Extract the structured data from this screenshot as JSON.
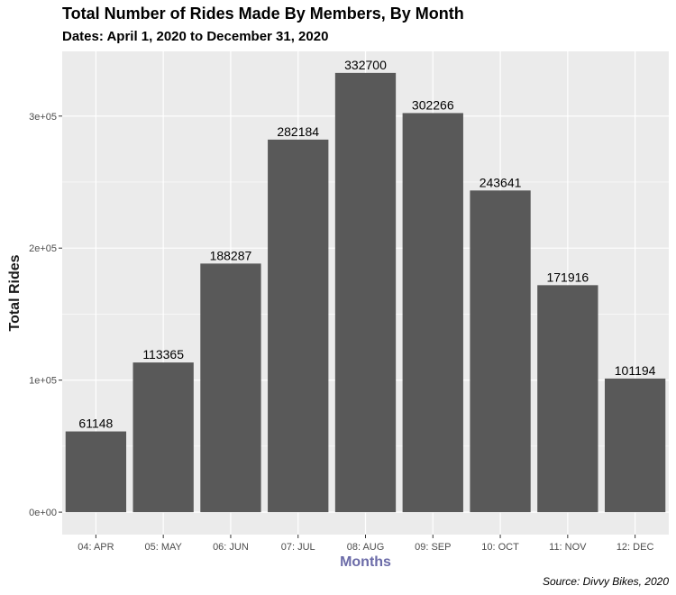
{
  "chart_data": {
    "type": "bar",
    "title": "Total Number of Rides Made By Members, By Month",
    "subtitle": "Dates: April 1, 2020 to December 31, 2020",
    "caption": "Source: Divvy Bikes, 2020",
    "xlabel": "Months",
    "ylabel": "Total Rides",
    "categories": [
      "04: APR",
      "05: MAY",
      "06: JUN",
      "07: JUL",
      "08: AUG",
      "09: SEP",
      "10: OCT",
      "11: NOV",
      "12: DEC"
    ],
    "values": [
      61148,
      113365,
      188287,
      282184,
      332700,
      302266,
      243641,
      171916,
      101194
    ],
    "data_labels": [
      "61148",
      "113365",
      "188287",
      "282184",
      "332700",
      "302266",
      "243641",
      "171916",
      "101194"
    ],
    "ylim": [
      -17000,
      349000
    ],
    "yticks": [
      0,
      100000,
      200000,
      300000
    ],
    "ytick_labels": [
      "0e+00",
      "1e+05",
      "2e+05",
      "3e+05"
    ],
    "grid": true,
    "colors": {
      "panel_background": "#ebebeb",
      "gridline": "#ffffff",
      "bar": "#595959",
      "xlabel": "#6b6ba8"
    }
  }
}
